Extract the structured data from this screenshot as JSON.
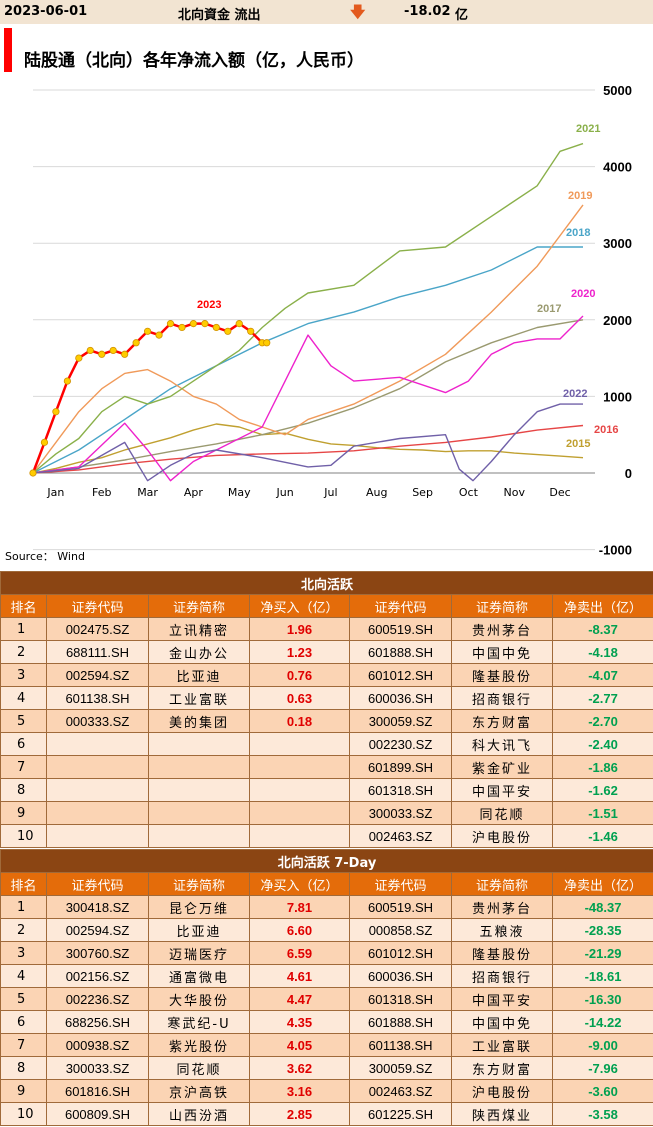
{
  "header": {
    "date": "2023-06-01",
    "label": "北向資金 流出",
    "arrow": "🡇",
    "arrow_color": "#e35a1e",
    "value": "-18.02",
    "unit": "亿"
  },
  "chart_data": {
    "type": "line",
    "title": "陆股通（北向）各年净流入额（亿，人民币）",
    "title_marker_color": "#ff0000",
    "source": "Source： Wind",
    "x_labels": [
      "Jan",
      "Feb",
      "Mar",
      "Apr",
      "May",
      "Jun",
      "Jul",
      "Aug",
      "Sep",
      "Oct",
      "Nov",
      "Dec"
    ],
    "y_ticks": [
      "5000",
      "4000",
      "3000",
      "2000",
      "1000",
      "0",
      "-1000"
    ],
    "ylim": [
      -1000,
      5000
    ],
    "xlim": [
      0,
      12
    ],
    "grid": "horizontal",
    "series": [
      {
        "name": "2015",
        "color": "#c0a030",
        "x": [
          0,
          0.5,
          1,
          1.5,
          2,
          2.5,
          3,
          3.5,
          4,
          4.5,
          5,
          5.5,
          6,
          6.5,
          7,
          7.5,
          8,
          8.5,
          9,
          9.5,
          10,
          10.5,
          11,
          11.5,
          12
        ],
        "y": [
          0,
          60,
          140,
          200,
          300,
          380,
          460,
          560,
          640,
          600,
          500,
          520,
          440,
          380,
          360,
          330,
          310,
          300,
          280,
          290,
          290,
          260,
          240,
          220,
          200
        ]
      },
      {
        "name": "2016",
        "color": "#e64646",
        "x": [
          0,
          1,
          2,
          3,
          4,
          5,
          6,
          7,
          8,
          9,
          10,
          11,
          12
        ],
        "y": [
          0,
          40,
          120,
          180,
          230,
          250,
          260,
          290,
          350,
          400,
          470,
          560,
          620
        ]
      },
      {
        "name": "2017",
        "color": "#9a9a70",
        "x": [
          0,
          1,
          2,
          3,
          4,
          5,
          6,
          7,
          8,
          9,
          10,
          11,
          12
        ],
        "y": [
          0,
          80,
          170,
          280,
          380,
          500,
          650,
          850,
          1100,
          1450,
          1700,
          1900,
          2000
        ]
      },
      {
        "name": "2018",
        "color": "#4aa5c8",
        "x": [
          0,
          1,
          2,
          3,
          4,
          5,
          6,
          7,
          8,
          9,
          10,
          11,
          12
        ],
        "y": [
          0,
          300,
          700,
          1100,
          1400,
          1700,
          1950,
          2100,
          2300,
          2450,
          2650,
          2950,
          2950
        ]
      },
      {
        "name": "2019",
        "color": "#f09a5a",
        "x": [
          0,
          0.5,
          1,
          1.5,
          2,
          2.5,
          3,
          3.5,
          4,
          4.5,
          5,
          5.5,
          6,
          7,
          8,
          9,
          10,
          11,
          12
        ],
        "y": [
          0,
          400,
          800,
          1100,
          1300,
          1350,
          1200,
          1000,
          900,
          700,
          600,
          500,
          700,
          900,
          1200,
          1550,
          2100,
          2700,
          3500
        ]
      },
      {
        "name": "2020",
        "color": "#ee22cc",
        "x": [
          0,
          1,
          2,
          2.5,
          3,
          3.5,
          4,
          5,
          6,
          6.5,
          7,
          8,
          9,
          9.5,
          10,
          10.5,
          11,
          11.5,
          12
        ],
        "y": [
          0,
          80,
          650,
          300,
          -100,
          150,
          300,
          600,
          1800,
          1400,
          1200,
          1250,
          1050,
          1200,
          1550,
          1700,
          1750,
          1750,
          2050
        ]
      },
      {
        "name": "2021",
        "color": "#8ab04a",
        "x": [
          0,
          0.5,
          1,
          1.5,
          2,
          2.5,
          3,
          3.5,
          4,
          4.5,
          5,
          5.5,
          6,
          7,
          8,
          9,
          10,
          11,
          11.5,
          12
        ],
        "y": [
          0,
          250,
          450,
          800,
          1000,
          900,
          1000,
          1200,
          1400,
          1600,
          1900,
          2150,
          2350,
          2450,
          2900,
          2950,
          3350,
          3750,
          4200,
          4300
        ]
      },
      {
        "name": "2022",
        "color": "#7060a8",
        "x": [
          0,
          1,
          2,
          2.5,
          3,
          3.5,
          4,
          5,
          6,
          6.5,
          7,
          8,
          9,
          9.3,
          9.6,
          10,
          10.5,
          11,
          11.5,
          12
        ],
        "y": [
          0,
          60,
          400,
          -100,
          100,
          250,
          300,
          200,
          80,
          100,
          350,
          450,
          500,
          50,
          -100,
          150,
          500,
          800,
          900,
          900
        ]
      },
      {
        "name": "2023",
        "color": "#ff0000",
        "marker_color": "#ffcc00",
        "x": [
          0,
          0.25,
          0.5,
          0.75,
          1,
          1.25,
          1.5,
          1.75,
          2,
          2.25,
          2.5,
          2.75,
          3,
          3.25,
          3.5,
          3.75,
          4,
          4.25,
          4.5,
          4.75,
          5,
          5.1
        ],
        "y": [
          0,
          400,
          800,
          1200,
          1500,
          1600,
          1550,
          1600,
          1550,
          1700,
          1850,
          1800,
          1950,
          1900,
          1950,
          1950,
          1900,
          1850,
          1950,
          1850,
          1700,
          1700
        ]
      }
    ]
  },
  "table1": {
    "title": "北向活跃",
    "headers": [
      "排名",
      "证券代码",
      "证券简称",
      "净买入（亿）",
      "证券代码",
      "证券简称",
      "净卖出（亿）"
    ],
    "rows": [
      [
        "1",
        "002475.SZ",
        "立讯精密",
        "1.96",
        "600519.SH",
        "贵州茅台",
        "-8.37"
      ],
      [
        "2",
        "688111.SH",
        "金山办公",
        "1.23",
        "601888.SH",
        "中国中免",
        "-4.18"
      ],
      [
        "3",
        "002594.SZ",
        "比亚迪",
        "0.76",
        "601012.SH",
        "隆基股份",
        "-4.07"
      ],
      [
        "4",
        "601138.SH",
        "工业富联",
        "0.63",
        "600036.SH",
        "招商银行",
        "-2.77"
      ],
      [
        "5",
        "000333.SZ",
        "美的集团",
        "0.18",
        "300059.SZ",
        "东方财富",
        "-2.70"
      ],
      [
        "6",
        "",
        "",
        "",
        "002230.SZ",
        "科大讯飞",
        "-2.40"
      ],
      [
        "7",
        "",
        "",
        "",
        "601899.SH",
        "紫金矿业",
        "-1.86"
      ],
      [
        "8",
        "",
        "",
        "",
        "601318.SH",
        "中国平安",
        "-1.62"
      ],
      [
        "9",
        "",
        "",
        "",
        "300033.SZ",
        "同花顺",
        "-1.51"
      ],
      [
        "10",
        "",
        "",
        "",
        "002463.SZ",
        "沪电股份",
        "-1.46"
      ]
    ]
  },
  "table2": {
    "title": "北向活跃 7-Day",
    "headers": [
      "排名",
      "证券代码",
      "证券简称",
      "净买入（亿）",
      "证券代码",
      "证券简称",
      "净卖出（亿）"
    ],
    "rows": [
      [
        "1",
        "300418.SZ",
        "昆仑万维",
        "7.81",
        "600519.SH",
        "贵州茅台",
        "-48.37"
      ],
      [
        "2",
        "002594.SZ",
        "比亚迪",
        "6.60",
        "000858.SZ",
        "五粮液",
        "-28.35"
      ],
      [
        "3",
        "300760.SZ",
        "迈瑞医疗",
        "6.59",
        "601012.SH",
        "隆基股份",
        "-21.29"
      ],
      [
        "4",
        "002156.SZ",
        "通富微电",
        "4.61",
        "600036.SH",
        "招商银行",
        "-18.61"
      ],
      [
        "5",
        "002236.SZ",
        "大华股份",
        "4.47",
        "601318.SH",
        "中国平安",
        "-16.30"
      ],
      [
        "6",
        "688256.SH",
        "寒武纪-U",
        "4.35",
        "601888.SH",
        "中国中免",
        "-14.22"
      ],
      [
        "7",
        "000938.SZ",
        "紫光股份",
        "4.05",
        "601138.SH",
        "工业富联",
        "-9.00"
      ],
      [
        "8",
        "300033.SZ",
        "同花顺",
        "3.62",
        "300059.SZ",
        "东方财富",
        "-7.96"
      ],
      [
        "9",
        "601816.SH",
        "京沪高铁",
        "3.16",
        "002463.SZ",
        "沪电股份",
        "-3.60"
      ],
      [
        "10",
        "600809.SH",
        "山西汾酒",
        "2.85",
        "601225.SH",
        "陕西煤业",
        "-3.58"
      ]
    ]
  }
}
